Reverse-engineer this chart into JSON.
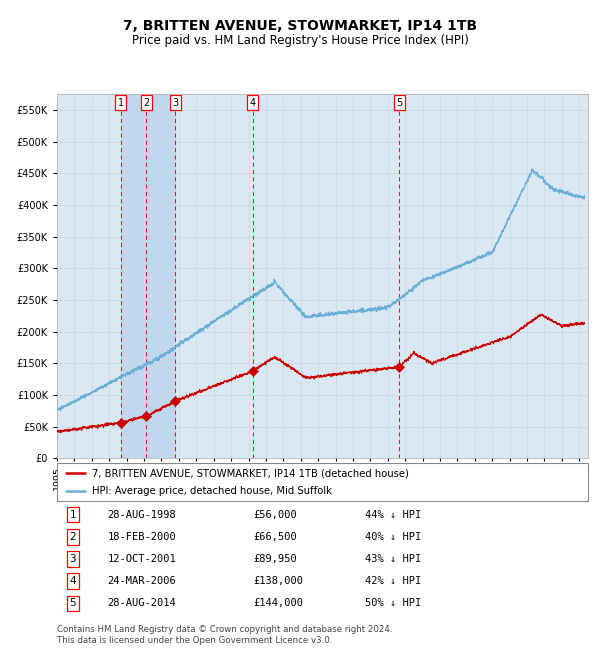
{
  "title": "7, BRITTEN AVENUE, STOWMARKET, IP14 1TB",
  "subtitle": "Price paid vs. HM Land Registry's House Price Index (HPI)",
  "title_fontsize": 10,
  "subtitle_fontsize": 8.5,
  "ylim": [
    0,
    575000
  ],
  "yticks": [
    0,
    50000,
    100000,
    150000,
    200000,
    250000,
    300000,
    350000,
    400000,
    450000,
    500000,
    550000
  ],
  "ytick_labels": [
    "£0",
    "£50K",
    "£100K",
    "£150K",
    "£200K",
    "£250K",
    "£300K",
    "£350K",
    "£400K",
    "£450K",
    "£500K",
    "£550K"
  ],
  "xlim_start": 1995.0,
  "xlim_end": 2025.5,
  "grid_color": "#c8d8e8",
  "plot_bg_color": "#dae8f4",
  "hpi_color": "#6aaed6",
  "sale_color": "#cc0000",
  "vline_color": "#cc0000",
  "shade_color": "#c0d8ee",
  "footnote": "Contains HM Land Registry data © Crown copyright and database right 2024.\nThis data is licensed under the Open Government Licence v3.0.",
  "legend_entries": [
    "7, BRITTEN AVENUE, STOWMARKET, IP14 1TB (detached house)",
    "HPI: Average price, detached house, Mid Suffolk"
  ],
  "sales": [
    {
      "num": 1,
      "date_label": "28-AUG-1998",
      "price_label": "£56,000",
      "pct_label": "44% ↓ HPI",
      "year": 1998.65,
      "price": 56000
    },
    {
      "num": 2,
      "date_label": "18-FEB-2000",
      "price_label": "£66,500",
      "pct_label": "40% ↓ HPI",
      "year": 2000.13,
      "price": 66500
    },
    {
      "num": 3,
      "date_label": "12-OCT-2001",
      "price_label": "£89,950",
      "pct_label": "43% ↓ HPI",
      "year": 2001.78,
      "price": 89950
    },
    {
      "num": 4,
      "date_label": "24-MAR-2006",
      "price_label": "£138,000",
      "pct_label": "42% ↓ HPI",
      "year": 2006.23,
      "price": 138000
    },
    {
      "num": 5,
      "date_label": "28-AUG-2014",
      "price_label": "£144,000",
      "pct_label": "50% ↓ HPI",
      "year": 2014.65,
      "price": 144000
    }
  ]
}
